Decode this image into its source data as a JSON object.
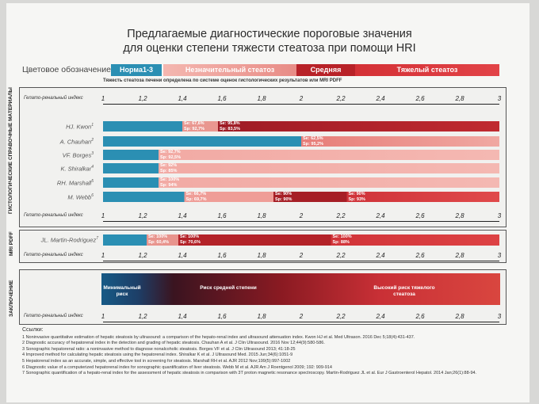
{
  "title": {
    "line1": "Предлагаемые диагностические пороговые значения",
    "line2": "для оценки степени тяжести стеатоза при помощи HRI"
  },
  "legend": {
    "label": "Цветовое обозначение",
    "items": [
      "Норма1-3",
      "Незначительный стеатоз",
      "Средняя степень",
      "Тяжелый стеатоз"
    ],
    "colors": [
      "#2b8fb3",
      "#f1a8a2",
      "#c0282c",
      "#d93a3e"
    ]
  },
  "subnote": "Тяжесть стеатоза печени определена по системе оценок гистологических результатов или MRI PDFF",
  "axis": {
    "label": "Гепато-ренальный индекс",
    "ticks": [
      "1",
      "1,2",
      "1,4",
      "1,6",
      "1,8",
      "2",
      "2,2",
      "2,4",
      "2,6",
      "2,8",
      "3"
    ]
  },
  "panel1": {
    "side_label": "ГИСТОЛОГИЧЕСКИЕ СПРАВОЧНЫЕ МАТЕРИАЛЫ",
    "rows": [
      {
        "name": "HJ. Kwon",
        "sup": "1",
        "stats": [
          {
            "x": 1.4,
            "se": "Se: 67,6%",
            "sp": "Sp: 92,7%"
          },
          {
            "x": 1.58,
            "se": "Se: 95,8%",
            "sp": "Sp: 83,5%"
          }
        ]
      },
      {
        "name": "A. Chauhan",
        "sup": "2",
        "stats": [
          {
            "x": 2.0,
            "se": "Se: 62,5%",
            "sp": "Sp: 95,2%"
          }
        ]
      },
      {
        "name": "VF. Borges",
        "sup": "3",
        "stats": [
          {
            "x": 1.28,
            "se": "Se: 92,7%",
            "sp": "Sp: 92,5%"
          }
        ]
      },
      {
        "name": "K. Shiralkar",
        "sup": "4",
        "stats": [
          {
            "x": 1.28,
            "se": "Se: 92%",
            "sp": "Sp: 85%"
          }
        ]
      },
      {
        "name": "RH. Marshall",
        "sup": "5",
        "stats": [
          {
            "x": 1.28,
            "se": "Se: 100%",
            "sp": "Sp: 94%"
          }
        ]
      },
      {
        "name": "M. Webb",
        "sup": "6",
        "stats": [
          {
            "x": 1.41,
            "se": "Se: 66,7%",
            "sp": "Sp: 69,7%"
          },
          {
            "x": 1.86,
            "se": "Se: 90%",
            "sp": "Sp: 90%"
          },
          {
            "x": 2.23,
            "se": "Se: 90%",
            "sp": "Sp: 93%"
          }
        ]
      }
    ]
  },
  "panel2": {
    "side_label": "MRI PDFF",
    "row": {
      "name": "JL. Martin-Rodriguez",
      "sup": "7",
      "stats": [
        {
          "x": 1.22,
          "se": "Se: 100%",
          "sp": "Sp: 60,4%"
        },
        {
          "x": 1.38,
          "se": "Se: 100%",
          "sp": "Sp: 70,6%"
        },
        {
          "x": 2.15,
          "se": "Se: 100%",
          "sp": "Sp: 88%"
        }
      ]
    }
  },
  "panel3": {
    "side_label": "ЗАКЛЮЧЕНИЕ",
    "segments": [
      {
        "text": "Минимальный риск"
      },
      {
        "text": "Риск средней степени"
      },
      {
        "text": "Высокий риск тяжелого стеатоза"
      }
    ]
  },
  "references": {
    "heading": "Ссылки:",
    "items": [
      "1    Noninvasive quantitative estimation of hepatic steatosis by ultrasound: a comparison of the hepato-renal index and ultrasound attenuation index. Kwon HJ et al. Med Ultrason. 2016 Dec 5;18(4):431-437.",
      "2    Diagnostic accuracy of hepatorenal index in the detection and grading of hepatic steatosis. Chauhan A et al. J Clin Ultrasound. 2016 Nov 12;44(9):580-586.",
      "3    Sonographic hepatorenal ratio: a noninvasive method to diagnose nonalcoholic steatosis. Borges VF et al. J Clin Ultrasound 2013; 41:18-25",
      "4    Improved method for calculating hepatic steatosis using the hepatorenal index. Shiralkar K et al. J Ultrasound Med. 2015 Jun;34(6):1051-9",
      "5    Hepatorenal index as an accurate, simple, and effective tool in screening for steatosis. Marshall RH et al. AJR 2012 Nov;199(5):997-1002",
      "6    Diagnostic value of a computerized hepatorenal index for sonographic quantification of liver steatosis. Webb M et al. AJR Am J Roentgenol 2009; 192: 909-914",
      "7    Sonographic quantification of a hepato-renal index for the assessment of hepatic steatosis in comparison with 3T proton magnetic resonance spectroscopy. Martin-Rodriguez JL et al. Eur J Gastroenterol Hepatol. 2014 Jan;26(1):88-94."
    ]
  }
}
